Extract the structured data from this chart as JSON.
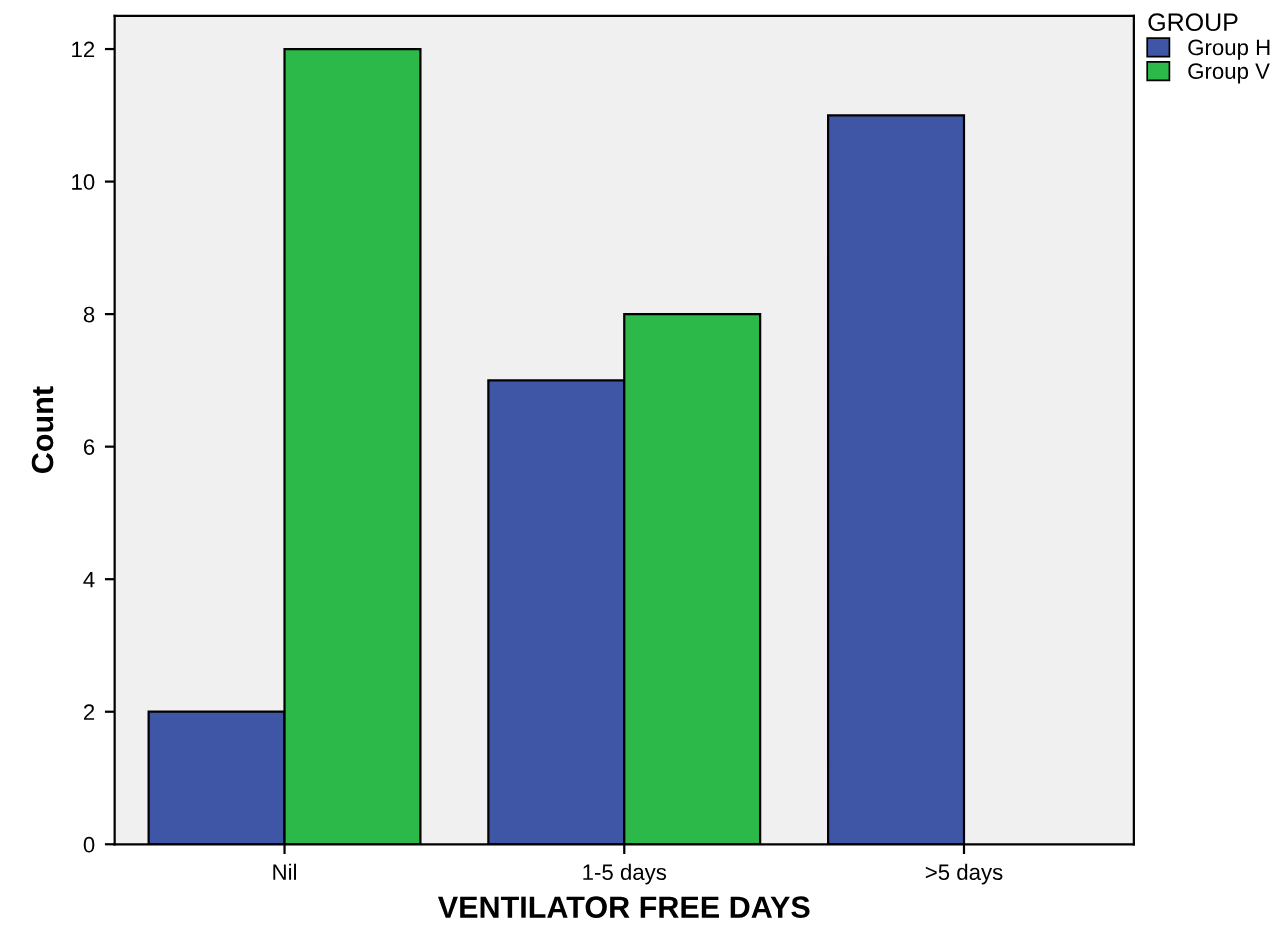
{
  "chart_data": {
    "type": "bar",
    "xlabel": "VENTILATOR FREE DAYS",
    "ylabel": "Count",
    "legend_title": "GROUP",
    "categories": [
      "Nil",
      "1-5 days",
      ">5 days"
    ],
    "series": [
      {
        "name": "Group H",
        "color": "#3f56a6",
        "values": [
          2,
          7,
          11
        ]
      },
      {
        "name": "Group V",
        "color": "#2db84a",
        "values": [
          12,
          8,
          0
        ]
      }
    ],
    "ylim": [
      0,
      12.5
    ],
    "yticks": [
      0,
      2,
      4,
      6,
      8,
      10,
      12
    ],
    "grid": false,
    "legend": "top right"
  }
}
